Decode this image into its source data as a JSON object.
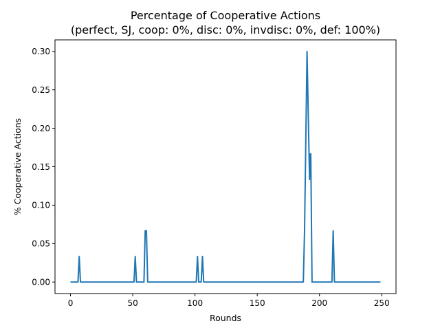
{
  "chart_data": {
    "type": "line",
    "title": "Percentage of Cooperative Actions",
    "subtitle": "(perfect, SJ, coop: 0%, disc: 0%, invdisc: 0%, def: 100%)",
    "xlabel": "Rounds",
    "ylabel": "% Cooperative Actions",
    "xlim": [
      -12.45,
      261.45
    ],
    "ylim": [
      -0.015,
      0.315
    ],
    "xticks": [
      0,
      50,
      100,
      150,
      200,
      250
    ],
    "xtick_labels": [
      "0",
      "50",
      "100",
      "150",
      "200",
      "250"
    ],
    "yticks": [
      0.0,
      0.05,
      0.1,
      0.15,
      0.2,
      0.25,
      0.3
    ],
    "ytick_labels": [
      "0.00",
      "0.05",
      "0.10",
      "0.15",
      "0.20",
      "0.25",
      "0.30"
    ],
    "grid": false,
    "series": [
      {
        "color": "#1f77b4",
        "points": [
          [
            0,
            0
          ],
          [
            6,
            0
          ],
          [
            7,
            0.0333
          ],
          [
            8,
            0
          ],
          [
            51,
            0
          ],
          [
            52,
            0.0333
          ],
          [
            53,
            0
          ],
          [
            59,
            0
          ],
          [
            60,
            0.0667
          ],
          [
            61,
            0.0667
          ],
          [
            62,
            0
          ],
          [
            101,
            0
          ],
          [
            102,
            0.0333
          ],
          [
            103,
            0
          ],
          [
            105,
            0
          ],
          [
            106,
            0.0333
          ],
          [
            107,
            0
          ],
          [
            187,
            0
          ],
          [
            188,
            0.0667
          ],
          [
            190,
            0.3
          ],
          [
            192,
            0.1333
          ],
          [
            192.5,
            0.1667
          ],
          [
            193,
            0.1667
          ],
          [
            194,
            0
          ],
          [
            210,
            0
          ],
          [
            211,
            0.0667
          ],
          [
            212,
            0
          ],
          [
            249,
            0
          ]
        ]
      }
    ]
  }
}
